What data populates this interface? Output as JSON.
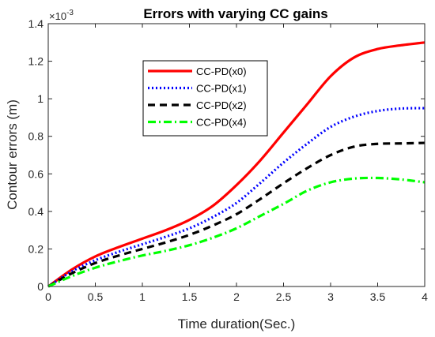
{
  "chart_data": {
    "type": "line",
    "title": "Errors with varying CC gains",
    "xlabel": "Time duration(Sec.)",
    "ylabel": "Contour errors (m)",
    "y_exponent": {
      "base": "×10",
      "power": "-3"
    },
    "xlim": [
      0,
      4
    ],
    "ylim": [
      0,
      1.4
    ],
    "xticks": [
      0,
      0.5,
      1,
      1.5,
      2,
      2.5,
      3,
      3.5,
      4
    ],
    "xtick_labels": [
      "0",
      "0.5",
      "1",
      "1.5",
      "2",
      "2.5",
      "3",
      "3.5",
      "4"
    ],
    "yticks": [
      0,
      0.2,
      0.4,
      0.6,
      0.8,
      1.0,
      1.2,
      1.4
    ],
    "ytick_labels": [
      "0",
      "0.2",
      "0.4",
      "0.6",
      "0.8",
      "1",
      "1.2",
      "1.4"
    ],
    "grid": false,
    "legend_position": "top-center",
    "x": [
      0,
      0.25,
      0.5,
      0.75,
      1.0,
      1.25,
      1.5,
      1.75,
      2.0,
      2.25,
      2.5,
      2.75,
      3.0,
      3.25,
      3.5,
      3.75,
      4.0
    ],
    "series": [
      {
        "name": "CC-PD(x0)",
        "color": "#ff0000",
        "dash": "solid",
        "values": [
          0,
          0.09,
          0.16,
          0.21,
          0.255,
          0.3,
          0.355,
          0.43,
          0.54,
          0.67,
          0.82,
          0.97,
          1.12,
          1.22,
          1.265,
          1.285,
          1.3
        ]
      },
      {
        "name": "CC-PD(x1)",
        "color": "#0000ff",
        "dash": "dotted",
        "values": [
          0,
          0.08,
          0.14,
          0.185,
          0.225,
          0.265,
          0.31,
          0.37,
          0.445,
          0.55,
          0.66,
          0.76,
          0.85,
          0.905,
          0.935,
          0.948,
          0.95
        ]
      },
      {
        "name": "CC-PD(x2)",
        "color": "#000000",
        "dash": "dashed",
        "values": [
          0,
          0.07,
          0.125,
          0.165,
          0.2,
          0.235,
          0.275,
          0.325,
          0.385,
          0.465,
          0.55,
          0.63,
          0.7,
          0.745,
          0.76,
          0.762,
          0.765
        ]
      },
      {
        "name": "CC-PD(x4)",
        "color": "#00ff00",
        "dash": "dashdot",
        "values": [
          0,
          0.055,
          0.1,
          0.135,
          0.165,
          0.19,
          0.22,
          0.26,
          0.31,
          0.375,
          0.44,
          0.51,
          0.555,
          0.575,
          0.578,
          0.57,
          0.555
        ]
      }
    ]
  }
}
